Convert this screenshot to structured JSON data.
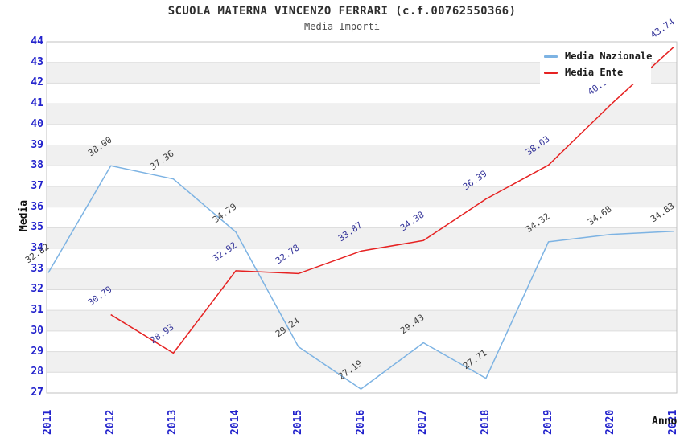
{
  "chart_data": {
    "type": "line",
    "title": "SCUOLA MATERNA VINCENZO FERRARI (c.f.00762550366)",
    "subtitle": "Media Importi",
    "xlabel": "Anno",
    "ylabel": "Media",
    "x": [
      2011,
      2012,
      2013,
      2014,
      2015,
      2016,
      2017,
      2018,
      2019,
      2020,
      2021
    ],
    "ylim": [
      27,
      44
    ],
    "ytick_step": 1,
    "grid": "horizontal-bands",
    "legend_position": "top-right-inside",
    "series": [
      {
        "name": "Media Nazionale",
        "color": "#7db3e3",
        "label_color": "#3f3f3f",
        "values": [
          32.82,
          38.0,
          37.36,
          34.79,
          29.24,
          27.19,
          29.43,
          27.71,
          34.32,
          34.68,
          34.83
        ]
      },
      {
        "name": "Media Ente",
        "color": "#e62222",
        "label_color": "#333399",
        "values": [
          null,
          30.79,
          28.93,
          32.92,
          32.78,
          33.87,
          34.38,
          36.39,
          38.03,
          40.97,
          43.74
        ]
      }
    ],
    "colors": {
      "band": "#f0f0f0",
      "gridline": "#dcdcdc",
      "plot_border": "#c0c0c0",
      "tick_label": "#2222cc",
      "background": "#ffffff"
    }
  }
}
